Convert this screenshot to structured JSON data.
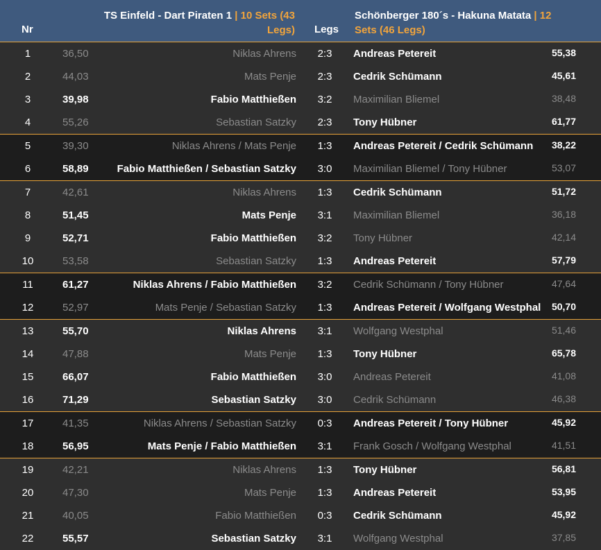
{
  "header": {
    "nr": "Nr",
    "legs": "Legs",
    "home_team": "TS Einfeld - Dart Piraten 1",
    "home_sets": "10 Sets (43 Legs)",
    "away_team": "Schönberger 180´s - Hakuna Matata",
    "away_sets": "12 Sets (46 Legs)",
    "separator": "|"
  },
  "colors": {
    "header_bg": "#3f5a7e",
    "accent": "#f1a43c",
    "row_light": "#2f2f2f",
    "row_dark": "#1d1d1d",
    "winner_text": "#ffffff",
    "loser_text": "#8b8b8b"
  },
  "blocks": [
    {
      "style": "light",
      "rows": [
        {
          "nr": "1",
          "home_avg": "36,50",
          "home": "Niklas Ahrens",
          "legs": "2:3",
          "away": "Andreas Petereit",
          "away_avg": "55,38",
          "winner": "away"
        },
        {
          "nr": "2",
          "home_avg": "44,03",
          "home": "Mats Penje",
          "legs": "2:3",
          "away": "Cedrik Schümann",
          "away_avg": "45,61",
          "winner": "away"
        },
        {
          "nr": "3",
          "home_avg": "39,98",
          "home": "Fabio Matthießen",
          "legs": "3:2",
          "away": "Maximilian Bliemel",
          "away_avg": "38,48",
          "winner": "home"
        },
        {
          "nr": "4",
          "home_avg": "55,26",
          "home": "Sebastian Satzky",
          "legs": "2:3",
          "away": "Tony Hübner",
          "away_avg": "61,77",
          "winner": "away"
        }
      ]
    },
    {
      "style": "dark",
      "rows": [
        {
          "nr": "5",
          "home_avg": "39,30",
          "home": "Niklas Ahrens / Mats Penje",
          "legs": "1:3",
          "away": "Andreas Petereit / Cedrik Schümann",
          "away_avg": "38,22",
          "winner": "away"
        },
        {
          "nr": "6",
          "home_avg": "58,89",
          "home": "Fabio Matthießen / Sebastian Satzky",
          "legs": "3:0",
          "away": "Maximilian Bliemel / Tony Hübner",
          "away_avg": "53,07",
          "winner": "home"
        }
      ]
    },
    {
      "style": "light",
      "rows": [
        {
          "nr": "7",
          "home_avg": "42,61",
          "home": "Niklas Ahrens",
          "legs": "1:3",
          "away": "Cedrik Schümann",
          "away_avg": "51,72",
          "winner": "away"
        },
        {
          "nr": "8",
          "home_avg": "51,45",
          "home": "Mats Penje",
          "legs": "3:1",
          "away": "Maximilian Bliemel",
          "away_avg": "36,18",
          "winner": "home"
        },
        {
          "nr": "9",
          "home_avg": "52,71",
          "home": "Fabio Matthießen",
          "legs": "3:2",
          "away": "Tony Hübner",
          "away_avg": "42,14",
          "winner": "home"
        },
        {
          "nr": "10",
          "home_avg": "53,58",
          "home": "Sebastian Satzky",
          "legs": "1:3",
          "away": "Andreas Petereit",
          "away_avg": "57,79",
          "winner": "away"
        }
      ]
    },
    {
      "style": "dark",
      "rows": [
        {
          "nr": "11",
          "home_avg": "61,27",
          "home": "Niklas Ahrens / Fabio Matthießen",
          "legs": "3:2",
          "away": "Cedrik Schümann / Tony Hübner",
          "away_avg": "47,64",
          "winner": "home"
        },
        {
          "nr": "12",
          "home_avg": "52,97",
          "home": "Mats Penje / Sebastian Satzky",
          "legs": "1:3",
          "away": "Andreas Petereit / Wolfgang Westphal",
          "away_avg": "50,70",
          "winner": "away"
        }
      ]
    },
    {
      "style": "light",
      "rows": [
        {
          "nr": "13",
          "home_avg": "55,70",
          "home": "Niklas Ahrens",
          "legs": "3:1",
          "away": "Wolfgang Westphal",
          "away_avg": "51,46",
          "winner": "home"
        },
        {
          "nr": "14",
          "home_avg": "47,88",
          "home": "Mats Penje",
          "legs": "1:3",
          "away": "Tony Hübner",
          "away_avg": "65,78",
          "winner": "away"
        },
        {
          "nr": "15",
          "home_avg": "66,07",
          "home": "Fabio Matthießen",
          "legs": "3:0",
          "away": "Andreas Petereit",
          "away_avg": "41,08",
          "winner": "home"
        },
        {
          "nr": "16",
          "home_avg": "71,29",
          "home": "Sebastian Satzky",
          "legs": "3:0",
          "away": "Cedrik Schümann",
          "away_avg": "46,38",
          "winner": "home"
        }
      ]
    },
    {
      "style": "dark",
      "rows": [
        {
          "nr": "17",
          "home_avg": "41,35",
          "home": "Niklas Ahrens / Sebastian Satzky",
          "legs": "0:3",
          "away": "Andreas Petereit / Tony Hübner",
          "away_avg": "45,92",
          "winner": "away"
        },
        {
          "nr": "18",
          "home_avg": "56,95",
          "home": "Mats Penje / Fabio Matthießen",
          "legs": "3:1",
          "away": "Frank Gosch / Wolfgang Westphal",
          "away_avg": "41,51",
          "winner": "home"
        }
      ]
    },
    {
      "style": "light",
      "rows": [
        {
          "nr": "19",
          "home_avg": "42,21",
          "home": "Niklas Ahrens",
          "legs": "1:3",
          "away": "Tony Hübner",
          "away_avg": "56,81",
          "winner": "away"
        },
        {
          "nr": "20",
          "home_avg": "47,30",
          "home": "Mats Penje",
          "legs": "1:3",
          "away": "Andreas Petereit",
          "away_avg": "53,95",
          "winner": "away"
        },
        {
          "nr": "21",
          "home_avg": "40,05",
          "home": "Fabio Matthießen",
          "legs": "0:3",
          "away": "Cedrik Schümann",
          "away_avg": "45,92",
          "winner": "away"
        },
        {
          "nr": "22",
          "home_avg": "55,57",
          "home": "Sebastian Satzky",
          "legs": "3:1",
          "away": "Wolfgang Westphal",
          "away_avg": "37,85",
          "winner": "home"
        }
      ]
    }
  ]
}
